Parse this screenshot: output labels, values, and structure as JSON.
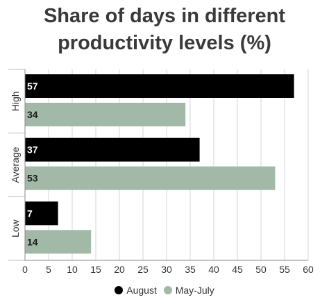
{
  "title_lines": [
    "Share of days in different",
    "productivity levels (%)"
  ],
  "colors": {
    "august": "#000000",
    "may_july": "#a3b9a8"
  },
  "chart_data": {
    "type": "bar",
    "orientation": "horizontal",
    "title": "Share of days in different productivity levels (%)",
    "categories": [
      "High",
      "Average",
      "Low"
    ],
    "series": [
      {
        "name": "August",
        "values": [
          57,
          37,
          7
        ]
      },
      {
        "name": "May-July",
        "values": [
          34,
          53,
          14
        ]
      }
    ],
    "xlim": [
      0,
      60
    ],
    "xticks": [
      0,
      5,
      10,
      15,
      20,
      25,
      30,
      35,
      40,
      45,
      50,
      55,
      60
    ],
    "grid": true,
    "legend_position": "bottom"
  }
}
